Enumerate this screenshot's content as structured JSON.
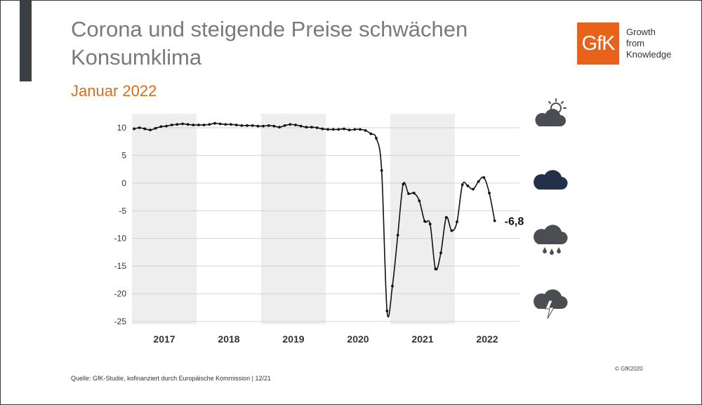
{
  "header": {
    "title": "Corona und steigende Preise schwächen Konsumklima",
    "subtitle": "Januar 2022"
  },
  "logo": {
    "mark": "GfK",
    "tagline": [
      "Growth",
      "from",
      "Knowledge"
    ],
    "brand_color": "#e8621c"
  },
  "chart_data": {
    "type": "line",
    "title": "",
    "xlabel": "",
    "ylabel": "",
    "ylim": [
      -25,
      10
    ],
    "y_ticks": [
      "10",
      "5",
      "0",
      "-5",
      "-10",
      "-15",
      "-20",
      "-25"
    ],
    "years": [
      "2017",
      "2018",
      "2019",
      "2020",
      "2021",
      "2022"
    ],
    "shaded_years": [
      "2017",
      "2019",
      "2021"
    ],
    "end_label": "-6,8",
    "series": [
      {
        "name": "Konsumklima",
        "values": [
          9.8,
          10.0,
          9.8,
          9.6,
          9.9,
          10.2,
          10.3,
          10.5,
          10.6,
          10.7,
          10.6,
          10.5,
          10.5,
          10.5,
          10.6,
          10.8,
          10.7,
          10.6,
          10.6,
          10.5,
          10.4,
          10.4,
          10.4,
          10.3,
          10.3,
          10.4,
          10.3,
          10.1,
          10.4,
          10.6,
          10.5,
          10.3,
          10.1,
          10.1,
          10.0,
          9.8,
          9.7,
          9.7,
          9.7,
          9.8,
          9.6,
          9.7,
          9.7,
          9.5,
          8.9,
          8.1,
          2.3,
          -23.1,
          -18.6,
          -9.4,
          -0.2,
          -1.9,
          -1.8,
          -3.2,
          -6.9,
          -7.4,
          -15.5,
          -12.6,
          -6.2,
          -8.6,
          -7.0,
          -0.3,
          -0.5,
          -1.1,
          0.3,
          1.0,
          -1.8,
          -6.8
        ]
      }
    ]
  },
  "weather_icons": [
    "sun-cloud-icon",
    "cloud-icon",
    "rain-cloud-icon",
    "storm-cloud-icon"
  ],
  "footer": {
    "source": "Quelle: GfK-Studie, kofinanziert durch Europäische Kommission | 12/21",
    "copyright": "© GfK2020"
  }
}
